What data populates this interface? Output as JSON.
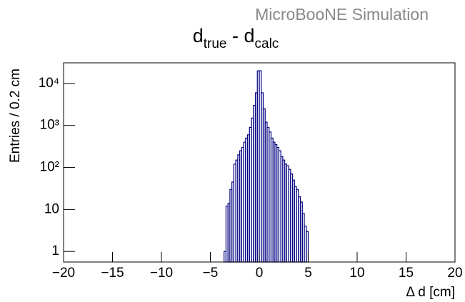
{
  "chart_data": {
    "type": "histogram",
    "title": [
      "d",
      "true",
      " - d",
      "calc"
    ],
    "annotation": "MicroBooNE Simulation",
    "x_label": "Δ d [cm]",
    "y_label": "Entries / 0.2 cm",
    "bins": [
      -3.6,
      -3.4,
      -3.2,
      -3.0,
      -2.8,
      -2.6,
      -2.4,
      -2.2,
      -2.0,
      -1.8,
      -1.6,
      -1.4,
      -1.2,
      -1.0,
      -0.8,
      -0.6,
      -0.4,
      -0.2,
      0.0,
      0.2,
      0.4,
      0.6,
      0.8,
      1.0,
      1.2,
      1.4,
      1.6,
      1.8,
      2.0,
      2.2,
      2.4,
      2.6,
      2.8,
      3.0,
      3.2,
      3.4,
      3.6,
      3.8,
      4.0,
      4.2,
      4.4,
      4.6,
      4.8,
      5.0
    ],
    "values": [
      1,
      12,
      14,
      30,
      45,
      120,
      150,
      200,
      250,
      300,
      400,
      500,
      600,
      900,
      1500,
      3000,
      6000,
      20000,
      20000,
      6000,
      2500,
      1200,
      900,
      700,
      500,
      400,
      350,
      300,
      250,
      180,
      150,
      120,
      110,
      90,
      70,
      50,
      35,
      30,
      20,
      15,
      8,
      4,
      3
    ],
    "color": "#000080",
    "xlim": [
      -20,
      20
    ],
    "xticks": [
      {
        "value": -20,
        "label": "−20"
      },
      {
        "value": -15,
        "label": "−15"
      },
      {
        "value": -10,
        "label": "−10"
      },
      {
        "value": -5,
        "label": "−5"
      },
      0,
      5,
      10,
      15,
      20
    ],
    "ylim": [
      0.56,
      31000
    ],
    "yticks": [
      1,
      10,
      {
        "value": 100,
        "label": "10²"
      },
      {
        "value": 1000,
        "label": "10³"
      },
      {
        "value": 10000,
        "label": "10⁴"
      }
    ],
    "log_y": true
  }
}
